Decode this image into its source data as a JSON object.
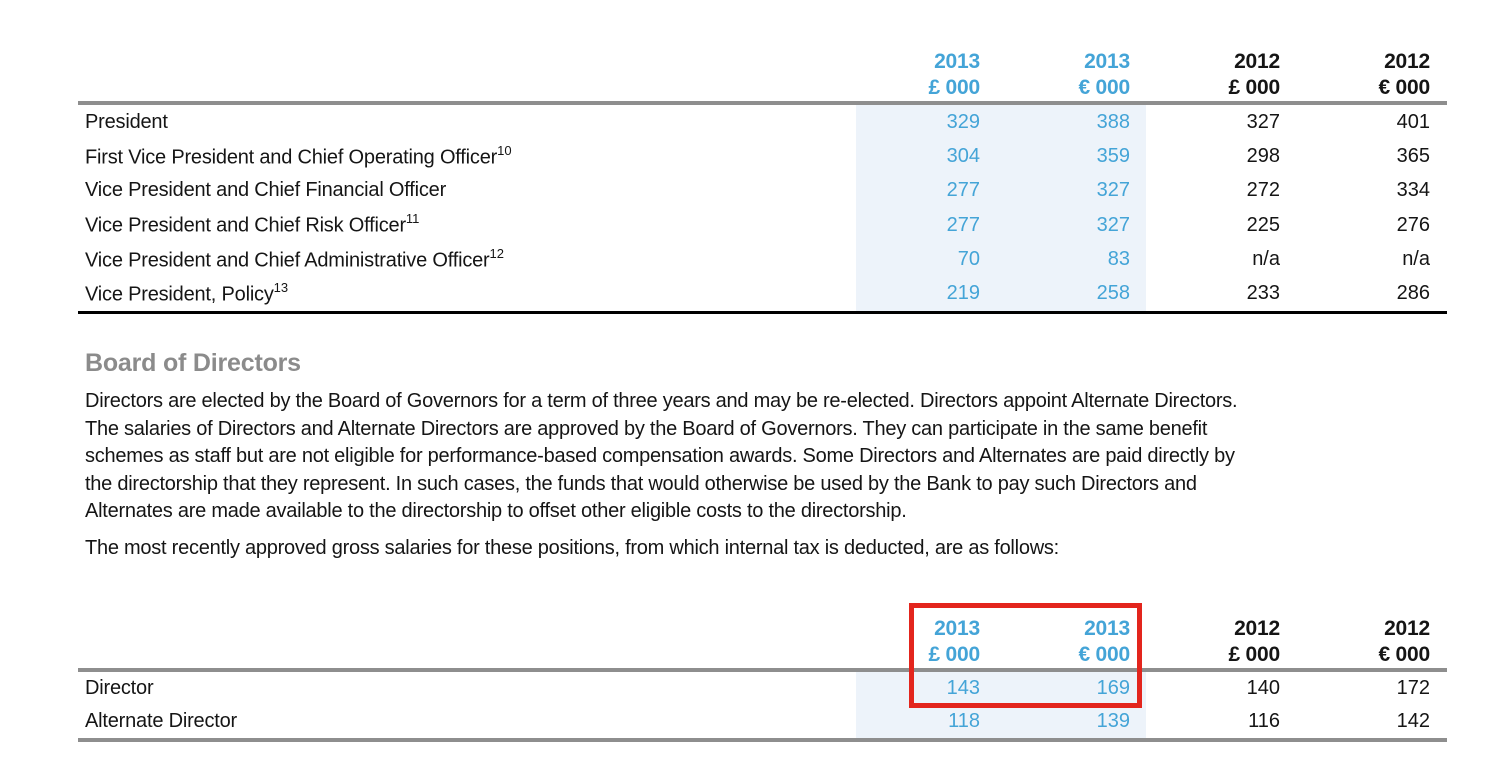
{
  "colors": {
    "accent_blue": "#44a4d7",
    "highlight_band": "#edf3fa",
    "rule_gray": "#8e8e8e",
    "rule_black": "#000000",
    "heading_gray": "#8b8b8b",
    "text_black": "#151515",
    "annotation_red": "#e3251d"
  },
  "officers_table": {
    "header": [
      {
        "year": "2013",
        "unit": "£ 000",
        "highlighted": true
      },
      {
        "year": "2013",
        "unit": "€ 000",
        "highlighted": true
      },
      {
        "year": "2012",
        "unit": "£ 000",
        "highlighted": false
      },
      {
        "year": "2012",
        "unit": "€ 000",
        "highlighted": false
      }
    ],
    "rows": [
      {
        "label": "President",
        "sup": "",
        "values": [
          "329",
          "388",
          "327",
          "401"
        ]
      },
      {
        "label": "First Vice President and Chief Operating Officer",
        "sup": "10",
        "values": [
          "304",
          "359",
          "298",
          "365"
        ]
      },
      {
        "label": "Vice President and Chief Financial Officer",
        "sup": "",
        "values": [
          "277",
          "327",
          "272",
          "334"
        ]
      },
      {
        "label": "Vice President and Chief Risk Officer",
        "sup": "11",
        "values": [
          "277",
          "327",
          "225",
          "276"
        ]
      },
      {
        "label": "Vice President and Chief Administrative Officer",
        "sup": "12",
        "values": [
          "70",
          "83",
          "n/a",
          "n/a"
        ]
      },
      {
        "label": "Vice President, Policy",
        "sup": "13",
        "values": [
          "219",
          "258",
          "233",
          "286"
        ]
      }
    ]
  },
  "section": {
    "heading": "Board of Directors",
    "paragraph1_lines": [
      "Directors are elected by the Board of Governors for a term of three years and may be re-elected. Directors appoint Alternate Directors.",
      "The salaries of Directors and Alternate Directors are approved by the Board of Governors. They can participate in the same benefit",
      "schemes as staff but are not eligible for performance-based compensation awards. Some Directors and Alternates are paid directly by",
      "the directorship that they represent. In such cases, the funds that would otherwise be used by the Bank to pay such Directors and",
      "Alternates are made available to the directorship to offset other eligible costs to the directorship."
    ],
    "paragraph2": "The most recently approved gross salaries for these positions, from which internal tax is deducted, are as follows:"
  },
  "directors_table": {
    "header": [
      {
        "year": "2013",
        "unit": "£ 000",
        "highlighted": true
      },
      {
        "year": "2013",
        "unit": "€ 000",
        "highlighted": true
      },
      {
        "year": "2012",
        "unit": "£ 000",
        "highlighted": false
      },
      {
        "year": "2012",
        "unit": "€ 000",
        "highlighted": false
      }
    ],
    "rows": [
      {
        "label": "Director",
        "sup": "",
        "values": [
          "143",
          "169",
          "140",
          "172"
        ]
      },
      {
        "label": "Alternate Director",
        "sup": "",
        "values": [
          "118",
          "139",
          "116",
          "142"
        ]
      }
    ]
  },
  "annotation": {
    "type": "highlight-box",
    "around": "2013 Director salary figures"
  }
}
